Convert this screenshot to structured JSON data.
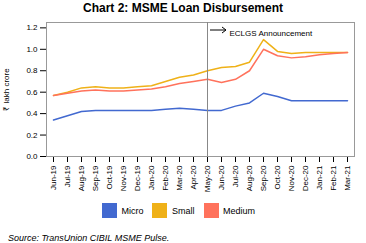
{
  "chart_data": {
    "type": "line",
    "title": "Chart 2: MSME Loan Disbursement",
    "ylabel": "₹ lakh crore",
    "source": "Source: TransUnion CIBIL MSME Pulse.",
    "categories": [
      "Jun-19",
      "Jul-19",
      "Aug-19",
      "Sep-19",
      "Oct-19",
      "Nov-19",
      "Dec-19",
      "Jan-20",
      "Feb-20",
      "Mar-20",
      "Apr-20",
      "May-20",
      "Jun-20",
      "Jul-20",
      "Aug-20",
      "Sep-20",
      "Oct-20",
      "Nov-20",
      "Dec-20",
      "Jan-21",
      "Feb-21",
      "Mar-21"
    ],
    "series": [
      {
        "name": "Micro",
        "values": [
          0.34,
          0.38,
          0.42,
          0.43,
          0.43,
          0.43,
          0.43,
          0.43,
          0.44,
          0.45,
          0.44,
          0.43,
          0.43,
          0.47,
          0.5,
          0.59,
          0.56,
          0.52,
          0.52,
          0.52,
          0.52,
          0.52
        ]
      },
      {
        "name": "Small",
        "values": [
          0.57,
          0.6,
          0.64,
          0.65,
          0.64,
          0.64,
          0.65,
          0.66,
          0.7,
          0.74,
          0.76,
          0.8,
          0.83,
          0.84,
          0.88,
          1.09,
          0.98,
          0.96,
          0.97,
          0.97,
          0.97,
          0.97
        ]
      },
      {
        "name": "Medium",
        "values": [
          0.57,
          0.59,
          0.61,
          0.62,
          0.61,
          0.61,
          0.62,
          0.63,
          0.65,
          0.68,
          0.7,
          0.72,
          0.69,
          0.72,
          0.8,
          1.0,
          0.94,
          0.92,
          0.93,
          0.95,
          0.96,
          0.97
        ]
      }
    ],
    "ylim": [
      0,
      1.25
    ],
    "yticks": [
      {
        "value": 0,
        "label": "0.0"
      },
      0.2,
      0.4,
      0.6,
      0.8,
      {
        "value": 1,
        "label": "1.0"
      },
      1.2
    ],
    "annotations": [
      {
        "text": "ECLGS Announcement",
        "x": "May-20"
      }
    ],
    "legend": "bottom",
    "grid": false
  }
}
